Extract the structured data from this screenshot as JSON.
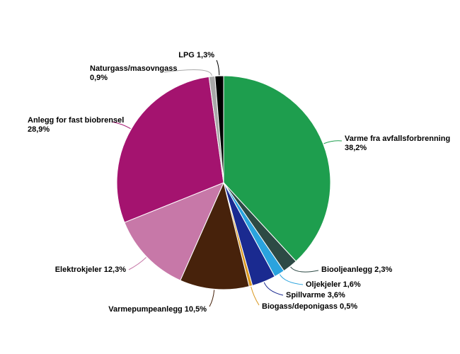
{
  "chart_data": {
    "type": "pie",
    "title": "",
    "unit": "%",
    "decimal_separator": ",",
    "start_angle_deg": 0,
    "direction": "clockwise",
    "legend_position": "outside-callout-labels",
    "background_color": "#ffffff",
    "label_text_color": "#000000",
    "slices": [
      {
        "label": "Varme fra avfallsforbrenning",
        "value": 38.2,
        "display": "38,2%",
        "color": "#1E9E4E"
      },
      {
        "label": "Biooljeanlegg",
        "value": 2.3,
        "display": "2,3%",
        "color": "#2D4A45"
      },
      {
        "label": "Oljekjeler",
        "value": 1.6,
        "display": "1,6%",
        "color": "#2AA3DE"
      },
      {
        "label": "Spillvarme",
        "value": 3.6,
        "display": "3,6%",
        "color": "#1A2A90"
      },
      {
        "label": "Biogass/deponigass",
        "value": 0.5,
        "display": "0,5%",
        "color": "#D9971E"
      },
      {
        "label": "Varmepumpeanlegg",
        "value": 10.5,
        "display": "10,5%",
        "color": "#47220B"
      },
      {
        "label": "Elektrokjeler",
        "value": 12.3,
        "display": "12,3%",
        "color": "#C778A8"
      },
      {
        "label": "Anlegg for fast biobrensel",
        "value": 28.9,
        "display": "28,9%",
        "color": "#A4136F"
      },
      {
        "label": "Naturgass/masovngass",
        "value": 0.9,
        "display": "0,9%",
        "color": "#A8A8A8"
      },
      {
        "label": "LPG",
        "value": 1.3,
        "display": "1,3%",
        "color": "#000000"
      }
    ]
  }
}
